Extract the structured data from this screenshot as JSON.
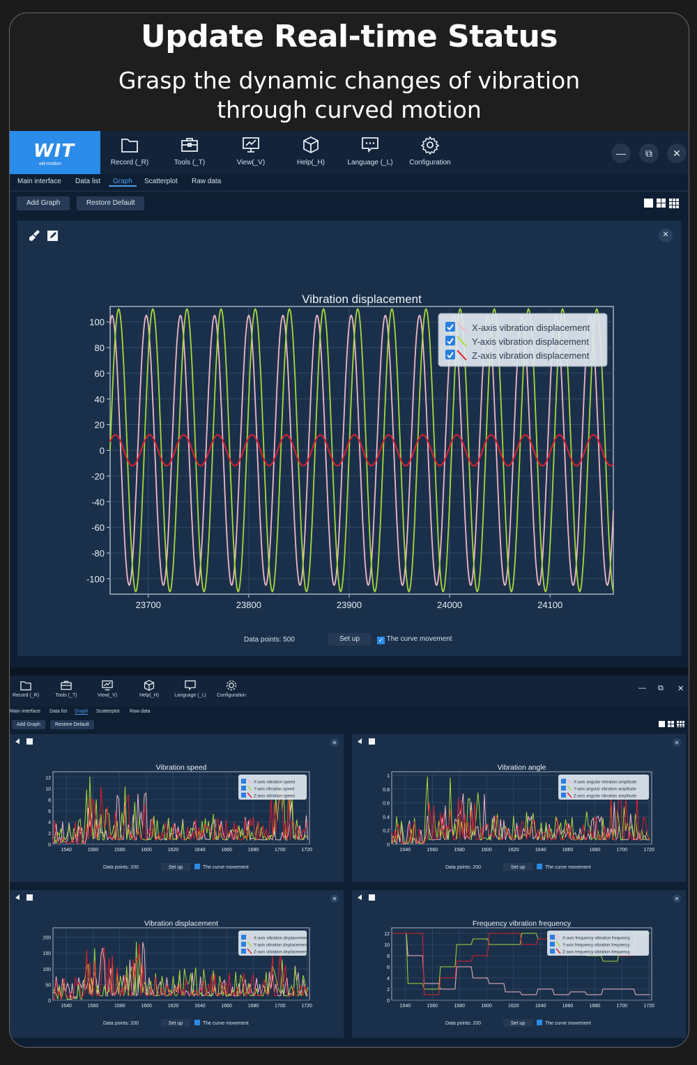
{
  "hero": {
    "title": "Update Real-time Status",
    "subtitle_line1": "Grasp the dynamic changes of vibration",
    "subtitle_line2": "through curved motion"
  },
  "toolbar": {
    "logo_text": "WIT",
    "logo_sub": "wit-motion",
    "buttons": [
      {
        "label": "Record (_R)",
        "icon": "folder-icon"
      },
      {
        "label": "Tools (_T)",
        "icon": "toolbox-icon"
      },
      {
        "label": "View(_V)",
        "icon": "monitor-chart-icon"
      },
      {
        "label": "Help(_H)",
        "icon": "cube-icon"
      },
      {
        "label": "Language (_L)",
        "icon": "chat-icon"
      },
      {
        "label": "Configuration",
        "icon": "gear-icon"
      }
    ],
    "window_controls": {
      "minimize": "—",
      "restore": "⧉",
      "close": "✕"
    }
  },
  "tabs": [
    "Main interface",
    "Data list",
    "Graph",
    "Scatterplot",
    "Raw data"
  ],
  "active_tab": "Graph",
  "actions": {
    "add_graph": "Add Graph",
    "restore_default": "Restore Default"
  },
  "main_chart": {
    "footer": {
      "data_points_label": "Data points:",
      "data_points_value": "500",
      "setup_button": "Set up",
      "curve_movement_label": "The curve movement",
      "curve_movement_checked": true
    }
  },
  "chart_data": [
    {
      "type": "line",
      "title": "Vibration displacement",
      "xlabel": "",
      "ylabel": "",
      "xlim": [
        23662,
        24163
      ],
      "ylim": [
        -112,
        112
      ],
      "x_ticks": [
        23700,
        23800,
        23900,
        24000,
        24100
      ],
      "y_ticks": [
        100,
        80,
        60,
        40,
        20,
        0,
        -20,
        -40,
        -60,
        -80,
        -100
      ],
      "legend_position": "top-right",
      "grid": true,
      "series": [
        {
          "name": "X-axis vibration displacement",
          "color": "#f2b8c6",
          "amplitude": 105,
          "period": 34,
          "phase": 1.2
        },
        {
          "name": "Y-axis vibration displacement",
          "color": "#a8d93a",
          "amplitude": 110,
          "period": 34,
          "phase": 0.0
        },
        {
          "name": "Z-axis vibration displacement",
          "color": "#e01e2d",
          "amplitude": 12,
          "period": 34,
          "phase": 0.6
        }
      ]
    },
    {
      "type": "line",
      "title": "Vibration speed",
      "xlim": [
        1530,
        1722
      ],
      "ylim": [
        0,
        13
      ],
      "x_ticks": [
        1540,
        1560,
        1580,
        1600,
        1620,
        1640,
        1660,
        1680,
        1700,
        1720
      ],
      "y_ticks": [
        0,
        2,
        4,
        6,
        8,
        10,
        12
      ],
      "legend_position": "top-right",
      "series": [
        {
          "name": "X-axis vibration speed",
          "color": "#f2b8c6"
        },
        {
          "name": "Y-axis vibration speed",
          "color": "#a8d93a"
        },
        {
          "name": "Z-axis vibration speed",
          "color": "#e01e2d"
        }
      ]
    },
    {
      "type": "line",
      "title": "Vibration angle",
      "xlim": [
        1530,
        1722
      ],
      "ylim": [
        0,
        1.05
      ],
      "x_ticks": [
        1540,
        1560,
        1580,
        1600,
        1620,
        1640,
        1660,
        1680,
        1700,
        1720
      ],
      "y_ticks": [
        0,
        0.2,
        0.4,
        0.6,
        0.8,
        1
      ],
      "legend_position": "top-right",
      "series": [
        {
          "name": "X-axis angular vibration amplitude",
          "color": "#f2b8c6"
        },
        {
          "name": "Y-axis angular vibration amplitude",
          "color": "#a8d93a"
        },
        {
          "name": "Z-axis angular vibration amplitude",
          "color": "#e01e2d"
        }
      ]
    },
    {
      "type": "line",
      "title": "Vibration displacement",
      "xlim": [
        1530,
        1722
      ],
      "ylim": [
        0,
        230
      ],
      "x_ticks": [
        1540,
        1560,
        1580,
        1600,
        1620,
        1640,
        1660,
        1680,
        1700,
        1720
      ],
      "y_ticks": [
        0,
        50,
        100,
        150,
        200
      ],
      "legend_position": "top-right",
      "series": [
        {
          "name": "X-axis vibration displacement",
          "color": "#f2b8c6"
        },
        {
          "name": "Y-axis vibration displacement",
          "color": "#a8d93a"
        },
        {
          "name": "Z-axis vibration displacement",
          "color": "#e01e2d"
        }
      ]
    },
    {
      "type": "line",
      "title": "Frequency vibration frequency",
      "xlim": [
        1530,
        1722
      ],
      "ylim": [
        0,
        13
      ],
      "x_ticks": [
        1540,
        1560,
        1580,
        1600,
        1620,
        1640,
        1660,
        1680,
        1700,
        1720
      ],
      "y_ticks": [
        0,
        2,
        4,
        6,
        8,
        10,
        12
      ],
      "legend_position": "top-right",
      "series": [
        {
          "name": "X-axis frequency vibration frequency",
          "color": "#f2b8c6"
        },
        {
          "name": "Y-axis frequency vibration frequency",
          "color": "#a8d93a"
        },
        {
          "name": "Z-axis frequency vibration frequency",
          "color": "#e01e2d"
        }
      ]
    }
  ],
  "small_footer": {
    "data_points_label": "Data points:",
    "data_points_value": "200",
    "setup_button": "Set up",
    "curve_movement_label": "The curve movement"
  },
  "colors": {
    "accent": "#2b8be8",
    "panel": "#1a304a",
    "background": "#0f1f33"
  }
}
